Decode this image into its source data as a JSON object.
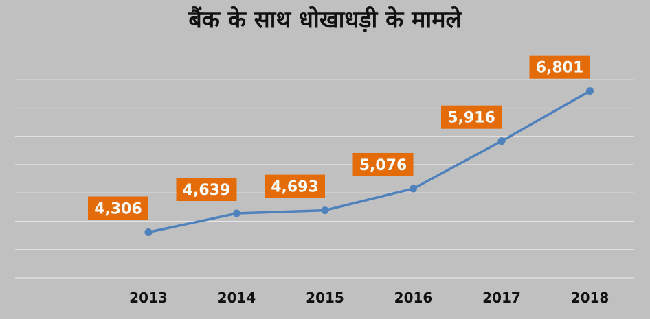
{
  "chart_data": {
    "type": "line",
    "title": "बैंक के साथ धोखाधड़ी के मामले",
    "categories": [
      "2013",
      "2014",
      "2015",
      "2016",
      "2017",
      "2018"
    ],
    "series": [
      {
        "values": [
          4306,
          4639,
          4693,
          5076,
          5916,
          6801
        ]
      }
    ],
    "data_labels": [
      "4,306",
      "4,639",
      "4,693",
      "5,076",
      "5,916",
      "6,801"
    ],
    "ylim": [
      3500,
      7500
    ],
    "grid": true,
    "legend": "none",
    "colors": {
      "line": "#4f81bd",
      "label_bg": "#e36c09",
      "background": "#c0c0c0",
      "grid": "#e4e4e4"
    }
  }
}
